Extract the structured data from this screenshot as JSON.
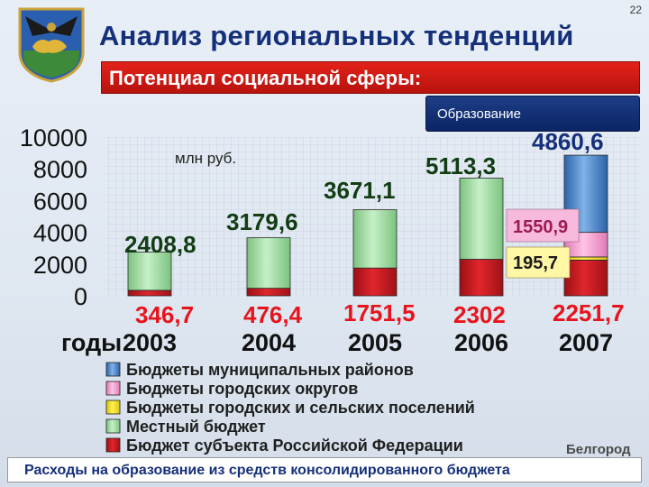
{
  "page_number": "22",
  "title": "Анализ региональных тенденций",
  "subtitle": "Потенциал социальной сферы:",
  "section": "Образование",
  "footer": "Расходы на образование из средств консолидированного бюджета",
  "city": "Белгород",
  "colors": {
    "municipal": "#4a86c8",
    "urban": "#f2a0cf",
    "settlements": "#f2e22a",
    "local": "#a6e3a8",
    "federal_subject": "#d81d24",
    "title": "#15307a",
    "banner": "#c8170f"
  },
  "chart_data": {
    "type": "bar",
    "stacked": true,
    "unit": "млн руб.",
    "xlabel": "годы",
    "ylim": [
      0,
      10000
    ],
    "yticks": [
      "10000",
      "8000",
      "6000",
      "4000",
      "2000",
      "0"
    ],
    "ytick_values": [
      10000,
      8000,
      6000,
      4000,
      2000,
      0
    ],
    "categories": [
      "2003",
      "2004",
      "2005",
      "2006",
      "2007"
    ],
    "series": [
      {
        "name": "Бюджет субъекта Российской Федерации",
        "key": "federal_subject",
        "values": [
          346.7,
          476.4,
          1751.5,
          2302,
          2251.7
        ]
      },
      {
        "name": "Местный бюджет",
        "key": "local",
        "values": [
          2408.8,
          3179.6,
          3671.1,
          5113.3,
          0
        ]
      },
      {
        "name": "Бюджеты городских и сельских поселений",
        "key": "settlements",
        "values": [
          0,
          0,
          0,
          0,
          195.7
        ]
      },
      {
        "name": "Бюджеты городских округов",
        "key": "urban",
        "values": [
          0,
          0,
          0,
          0,
          1550.9
        ]
      },
      {
        "name": "Бюджеты муниципальных районов",
        "key": "municipal",
        "values": [
          0,
          0,
          0,
          0,
          4860.6
        ]
      }
    ],
    "bar_labels_green": [
      "2408,8",
      "3179,6",
      "3671,1",
      "5113,3",
      ""
    ],
    "bar_labels_red": [
      "346,7",
      "476,4",
      "1751,5",
      "2302",
      "2251,7"
    ],
    "label_municipal_2007": "4860,6",
    "label_urban_2007": "1550,9",
    "label_settlements_2007": "195,7",
    "legend": [
      {
        "label": "Бюджеты муниципальных районов",
        "key": "municipal"
      },
      {
        "label": "Бюджеты городских округов",
        "key": "urban"
      },
      {
        "label": "Бюджеты городских и сельских поселений",
        "key": "settlements"
      },
      {
        "label": "Местный бюджет",
        "key": "local"
      },
      {
        "label": "Бюджет субъекта Российской Федерации",
        "key": "federal_subject"
      }
    ]
  }
}
